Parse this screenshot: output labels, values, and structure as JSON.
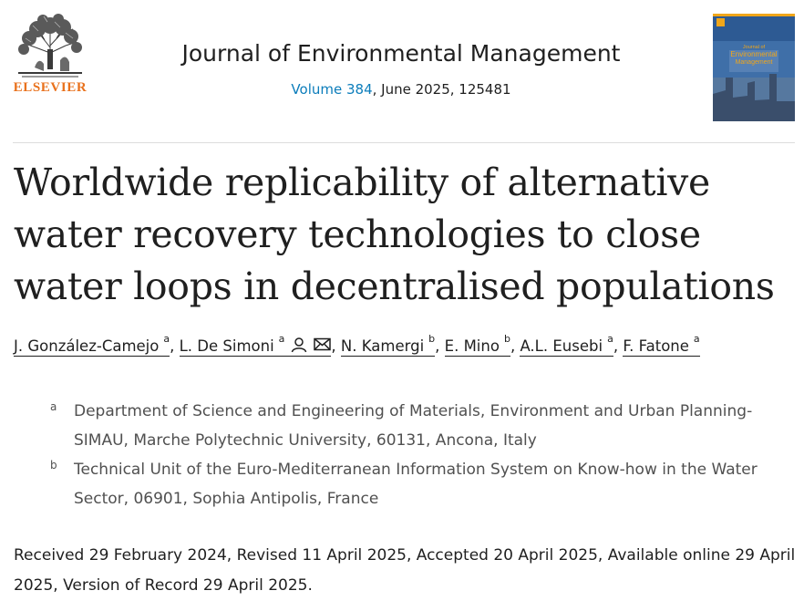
{
  "header": {
    "publisher": "ELSEVIER",
    "journal_title": "Journal of Environmental Management",
    "volume_link": "Volume 384",
    "issue_rest": ", June 2025, 125481",
    "cover_title_line1": "Journal of",
    "cover_title_line2": "Environmental",
    "cover_title_line3": "Management"
  },
  "article": {
    "title": "Worldwide replicability of alternative water recovery technologies to close water loops in decentralised populations"
  },
  "authors": [
    {
      "name": "J. González-Camejo",
      "aff": "a"
    },
    {
      "name": "L. De Simoni",
      "aff": "a"
    },
    {
      "name": "N. Kamergi",
      "aff": "b"
    },
    {
      "name": "E. Mino",
      "aff": "b"
    },
    {
      "name": "A.L. Eusebi",
      "aff": "a"
    },
    {
      "name": "F. Fatone",
      "aff": "a"
    }
  ],
  "separator": ",",
  "affiliations": [
    {
      "mark": "a",
      "text": "Department of Science and Engineering of Materials, Environment and Urban Planning-SIMAU, Marche Polytechnic University, 60131, Ancona, Italy"
    },
    {
      "mark": "b",
      "text": "Technical Unit of the Euro-Mediterranean Information System on Know-how in the Water Sector, 06901, Sophia Antipolis, France"
    }
  ],
  "dates": "Received 29 February 2024, Revised 11 April 2025, Accepted 20 April 2025, Available online 29 April 2025, Version of Record 29 April 2025.",
  "colors": {
    "publisher": "#e9711c",
    "link": "#0c7dbb",
    "text": "#1f1f1f",
    "muted": "#505050"
  },
  "icons": [
    "elsevier-tree-logo",
    "journal-cover",
    "person-icon",
    "envelope-icon"
  ]
}
